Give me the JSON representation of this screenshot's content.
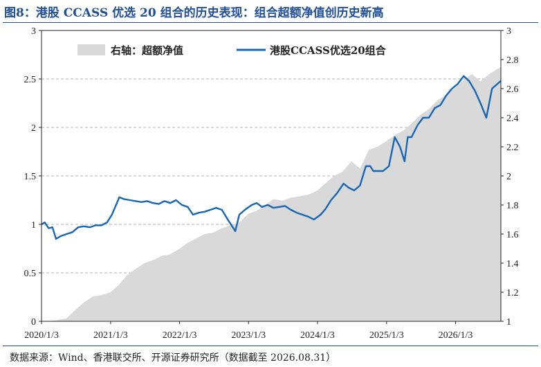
{
  "title": "图8：港股 CCASS 优选 20 组合的历史表现：组合超额净值创历史新高",
  "source": "数据来源：Wind、香港联交所、开源证券研究所（数据截至 2026.08.31）",
  "colors": {
    "line": "#1565b8",
    "area": "#d9d9d9",
    "title": "#1f4e9a"
  },
  "chart_data": {
    "type": "line",
    "grid": "horizontal dashed",
    "legend_position": "top",
    "x_ticks": [
      "2020/1/3",
      "2021/1/3",
      "2022/1/3",
      "2023/1/3",
      "2024/1/3",
      "2025/1/3",
      "2026/1/3"
    ],
    "y_left": {
      "min": 0,
      "max": 3,
      "ticks": [
        "0",
        "0.5",
        "1",
        "1.5",
        "2",
        "2.5",
        "3"
      ]
    },
    "y_right": {
      "min": 1,
      "max": 3,
      "ticks": [
        "1",
        "1.2",
        "1.4",
        "1.6",
        "1.8",
        "2",
        "2.2",
        "2.4",
        "2.6",
        "2.8",
        "3"
      ]
    },
    "series": [
      {
        "name": "右轴：超额净值",
        "kind": "area",
        "axis": "right",
        "x": [
          "2020-01-03",
          "2020-02-15",
          "2020-04-01",
          "2020-05-15",
          "2020-07-01",
          "2020-08-15",
          "2020-10-01",
          "2020-11-15",
          "2021-01-03",
          "2021-02-15",
          "2021-04-01",
          "2021-05-15",
          "2021-07-01",
          "2021-08-15",
          "2021-10-01",
          "2021-11-15",
          "2022-01-03",
          "2022-02-15",
          "2022-04-01",
          "2022-05-15",
          "2022-07-01",
          "2022-08-15",
          "2022-10-01",
          "2022-11-15",
          "2023-01-03",
          "2023-02-15",
          "2023-04-01",
          "2023-05-15",
          "2023-07-01",
          "2023-08-15",
          "2023-10-01",
          "2023-11-15",
          "2024-01-03",
          "2024-02-15",
          "2024-04-01",
          "2024-05-15",
          "2024-07-01",
          "2024-08-15",
          "2024-10-01",
          "2024-11-15",
          "2025-01-03",
          "2025-02-15",
          "2025-04-01",
          "2025-05-15",
          "2025-07-01",
          "2025-08-15",
          "2025-10-01",
          "2025-11-15",
          "2026-01-03",
          "2026-02-15",
          "2026-04-01",
          "2026-05-15",
          "2026-07-01",
          "2026-08-31"
        ],
        "values": [
          1.0,
          1.0,
          1.01,
          1.02,
          1.08,
          1.13,
          1.17,
          1.18,
          1.2,
          1.25,
          1.32,
          1.36,
          1.4,
          1.42,
          1.45,
          1.46,
          1.5,
          1.54,
          1.57,
          1.6,
          1.61,
          1.64,
          1.66,
          1.68,
          1.74,
          1.76,
          1.8,
          1.84,
          1.83,
          1.85,
          1.86,
          1.87,
          1.9,
          1.95,
          2.0,
          2.03,
          2.1,
          2.05,
          2.18,
          2.2,
          2.24,
          2.28,
          2.31,
          2.36,
          2.42,
          2.46,
          2.52,
          2.56,
          2.61,
          2.66,
          2.7,
          2.65,
          2.7,
          2.75
        ]
      },
      {
        "name": "港股CCASS优选20组合",
        "kind": "line",
        "axis": "left",
        "x": [
          "2020-01-03",
          "2020-01-20",
          "2020-02-10",
          "2020-03-01",
          "2020-03-20",
          "2020-04-15",
          "2020-05-15",
          "2020-06-15",
          "2020-07-15",
          "2020-08-15",
          "2020-09-15",
          "2020-10-15",
          "2020-11-15",
          "2020-12-15",
          "2021-01-10",
          "2021-02-18",
          "2021-03-15",
          "2021-04-15",
          "2021-05-15",
          "2021-06-15",
          "2021-07-15",
          "2021-08-15",
          "2021-09-15",
          "2021-10-15",
          "2021-11-15",
          "2021-12-15",
          "2022-01-15",
          "2022-02-15",
          "2022-03-15",
          "2022-04-15",
          "2022-05-15",
          "2022-06-15",
          "2022-07-15",
          "2022-08-15",
          "2022-09-15",
          "2022-10-25",
          "2022-11-15",
          "2022-12-15",
          "2023-01-20",
          "2023-02-15",
          "2023-03-15",
          "2023-04-15",
          "2023-05-15",
          "2023-06-15",
          "2023-07-15",
          "2023-08-15",
          "2023-09-15",
          "2023-10-15",
          "2023-11-15",
          "2023-12-15",
          "2024-01-20",
          "2024-02-15",
          "2024-03-15",
          "2024-04-15",
          "2024-05-20",
          "2024-06-15",
          "2024-07-15",
          "2024-08-15",
          "2024-09-15",
          "2024-10-08",
          "2024-10-25",
          "2024-11-15",
          "2024-12-15",
          "2025-01-15",
          "2025-02-15",
          "2025-03-15",
          "2025-04-08",
          "2025-04-25",
          "2025-05-15",
          "2025-06-15",
          "2025-07-15",
          "2025-08-15",
          "2025-09-15",
          "2025-10-15",
          "2025-11-15",
          "2025-12-15",
          "2026-01-15",
          "2026-02-15",
          "2026-03-15",
          "2026-04-15",
          "2026-05-15",
          "2026-06-15",
          "2026-07-15",
          "2026-08-31"
        ],
        "values": [
          1.0,
          1.02,
          0.96,
          0.97,
          0.85,
          0.88,
          0.9,
          0.92,
          0.97,
          0.98,
          0.97,
          0.99,
          0.99,
          1.02,
          1.1,
          1.28,
          1.26,
          1.25,
          1.24,
          1.23,
          1.24,
          1.22,
          1.21,
          1.24,
          1.22,
          1.25,
          1.2,
          1.18,
          1.1,
          1.12,
          1.13,
          1.15,
          1.17,
          1.15,
          1.05,
          0.93,
          1.1,
          1.15,
          1.2,
          1.22,
          1.18,
          1.2,
          1.17,
          1.18,
          1.19,
          1.15,
          1.12,
          1.1,
          1.08,
          1.05,
          1.1,
          1.16,
          1.25,
          1.32,
          1.42,
          1.38,
          1.35,
          1.4,
          1.6,
          1.6,
          1.55,
          1.55,
          1.55,
          1.6,
          1.9,
          1.8,
          1.65,
          1.9,
          1.9,
          2.02,
          2.1,
          2.1,
          2.2,
          2.23,
          2.33,
          2.4,
          2.45,
          2.53,
          2.48,
          2.38,
          2.25,
          2.1,
          2.4,
          2.48
        ]
      }
    ]
  }
}
